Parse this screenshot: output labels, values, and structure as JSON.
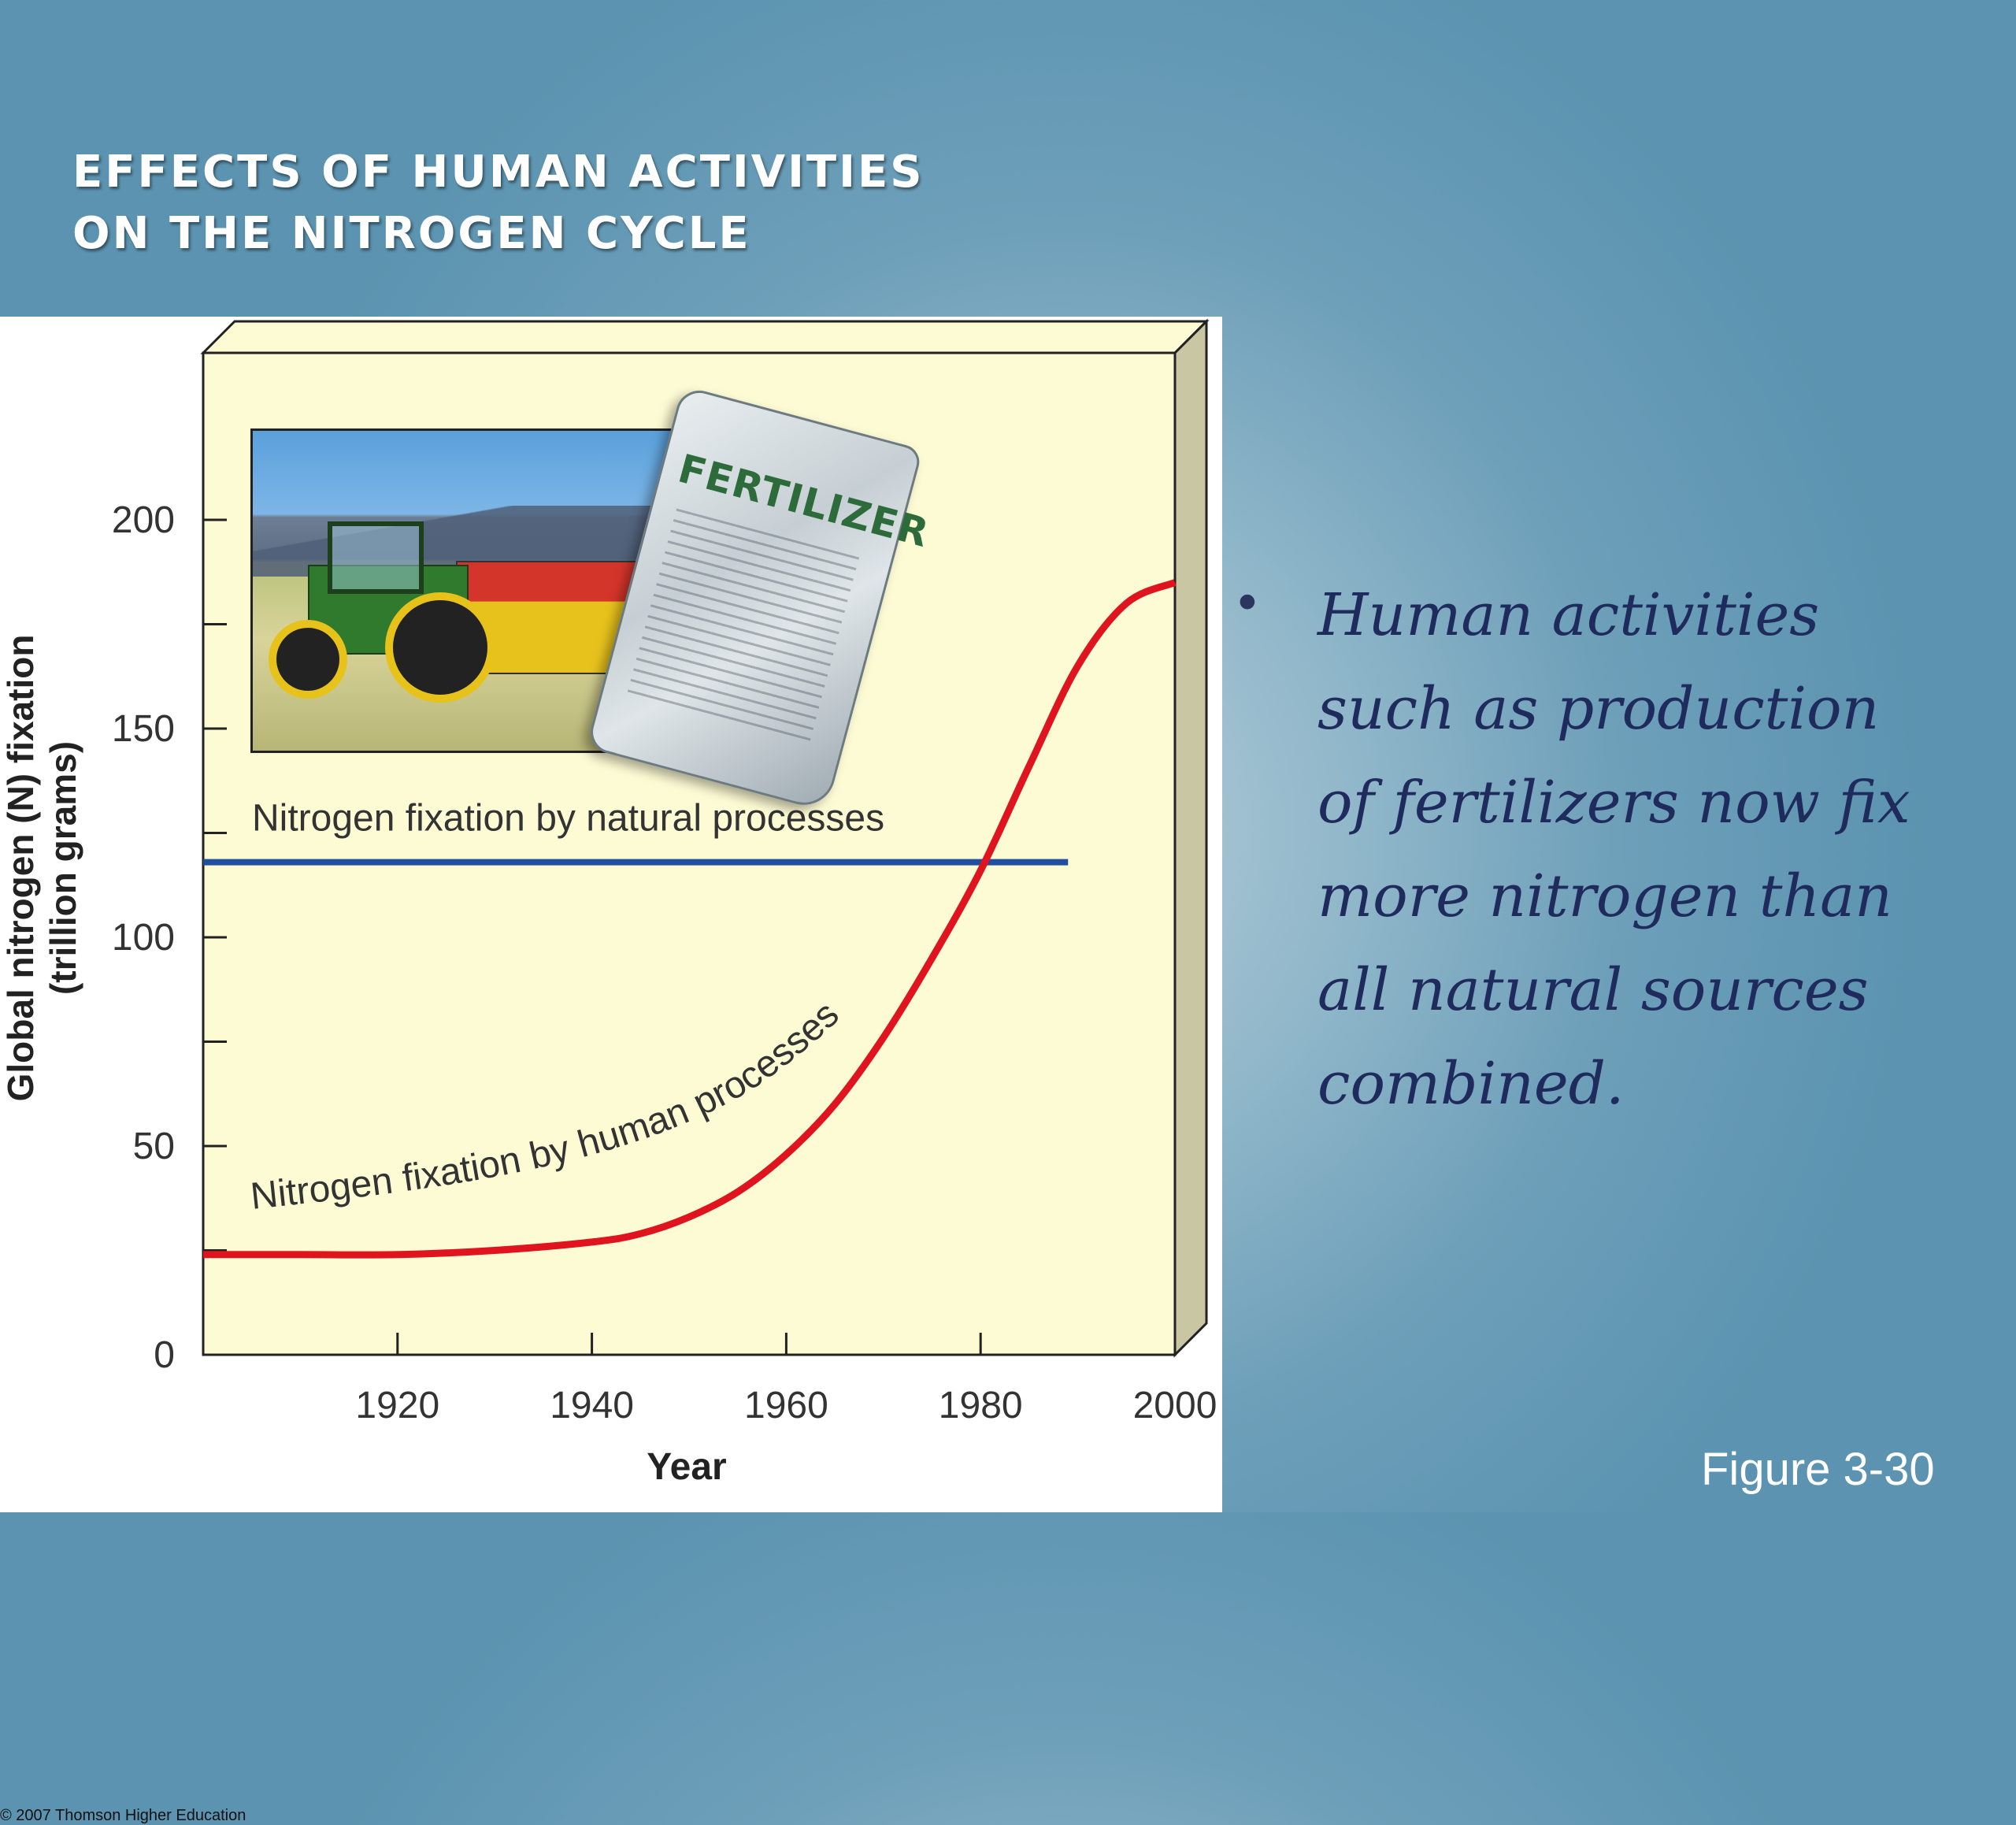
{
  "slide": {
    "title_line1": "EFFECTS OF HUMAN ACTIVITIES",
    "title_line2": "ON THE NITROGEN CYCLE",
    "bullet": "Human activities such as production of fertilizers now fix more nitrogen than all natural sources combined.",
    "figure_caption": "Figure 3-30",
    "copyright": "© 2007 Thomson Higher Education"
  },
  "image": {
    "bag_label": "FERTILIZER"
  },
  "chart_data": {
    "type": "line",
    "xlabel": "Year",
    "ylabel": "Global nitrogen (N) fixation",
    "ylabel_unit": "(trillion grams)",
    "xlim": [
      1900,
      2000
    ],
    "ylim": [
      0,
      230
    ],
    "x_ticks": [
      1920,
      1940,
      1960,
      1980,
      2000
    ],
    "y_ticks": [
      0,
      50,
      100,
      150,
      200
    ],
    "y_minor_ticks": [
      25,
      75,
      125,
      175
    ],
    "series": [
      {
        "name": "Nitrogen fixation by natural processes",
        "color": "#1f4f9e",
        "x": [
          1900,
          1989
        ],
        "y": [
          118,
          118
        ]
      },
      {
        "name": "Nitrogen fixation by human processes",
        "color": "#e0141e",
        "x": [
          1900,
          1910,
          1920,
          1930,
          1940,
          1945,
          1950,
          1955,
          1960,
          1965,
          1970,
          1975,
          1980,
          1985,
          1990,
          1995,
          2000
        ],
        "y": [
          24,
          24,
          24,
          25,
          27,
          29,
          33,
          39,
          48,
          60,
          76,
          95,
          116,
          141,
          165,
          180,
          185
        ]
      }
    ],
    "colors": {
      "plot_background": "#fdfbd4",
      "axis": "#222222",
      "box_side": "#c9c6a4"
    }
  }
}
